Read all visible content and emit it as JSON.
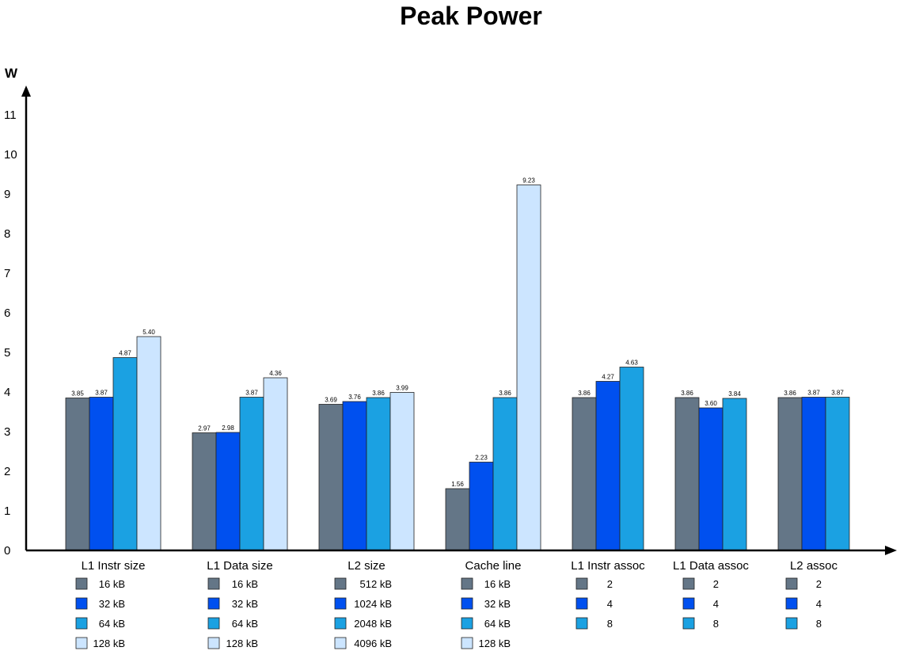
{
  "title": "Peak Power",
  "colors": [
    "#647687",
    "#0050ef",
    "#1ba1e2",
    "#cce5ff"
  ],
  "chart_data": {
    "type": "bar",
    "title": "Peak Power",
    "ylabel": "W",
    "xlabel": "",
    "ylim": [
      0,
      11
    ],
    "yticks": [
      0,
      1,
      2,
      3,
      4,
      5,
      6,
      7,
      8,
      9,
      10,
      11
    ],
    "groups": [
      {
        "name": "L1 Instr size",
        "labels": [
          "16 kB",
          "32 kB",
          "64 kB",
          "128 kB"
        ],
        "values": [
          3.85,
          3.87,
          4.87,
          5.4
        ],
        "value_labels": [
          "3.85",
          "3.87",
          "4.87",
          "5.40"
        ]
      },
      {
        "name": "L1 Data size",
        "labels": [
          "16 kB",
          "32 kB",
          "64 kB",
          "128 kB"
        ],
        "values": [
          2.97,
          2.98,
          3.87,
          4.36
        ],
        "value_labels": [
          "2.97",
          "2.98",
          "3.87",
          "4.36"
        ]
      },
      {
        "name": "L2 size",
        "labels": [
          "512 kB",
          "1024 kB",
          "2048 kB",
          "4096 kB"
        ],
        "values": [
          3.69,
          3.76,
          3.86,
          3.99
        ],
        "value_labels": [
          "3.69",
          "3.76",
          "3.86",
          "3.99"
        ]
      },
      {
        "name": "Cache line",
        "labels": [
          "16 kB",
          "32 kB",
          "64 kB",
          "128 kB"
        ],
        "values": [
          1.56,
          2.23,
          3.86,
          9.23
        ],
        "value_labels": [
          "1.56",
          "2.23",
          "3.86",
          "9.23"
        ]
      },
      {
        "name": "L1 Instr assoc",
        "labels": [
          "2",
          "4",
          "8"
        ],
        "values": [
          3.86,
          4.27,
          4.63
        ],
        "value_labels": [
          "3.86",
          "4.27",
          "4.63"
        ]
      },
      {
        "name": "L1 Data assoc",
        "labels": [
          "2",
          "4",
          "8"
        ],
        "values": [
          3.86,
          3.6,
          3.84
        ],
        "value_labels": [
          "3.86",
          "3.60",
          "3.84"
        ]
      },
      {
        "name": "L2 assoc",
        "labels": [
          "2",
          "4",
          "8"
        ],
        "values": [
          3.86,
          3.87,
          3.87
        ],
        "value_labels": [
          "3.86",
          "3.87",
          "3.87"
        ]
      }
    ]
  }
}
